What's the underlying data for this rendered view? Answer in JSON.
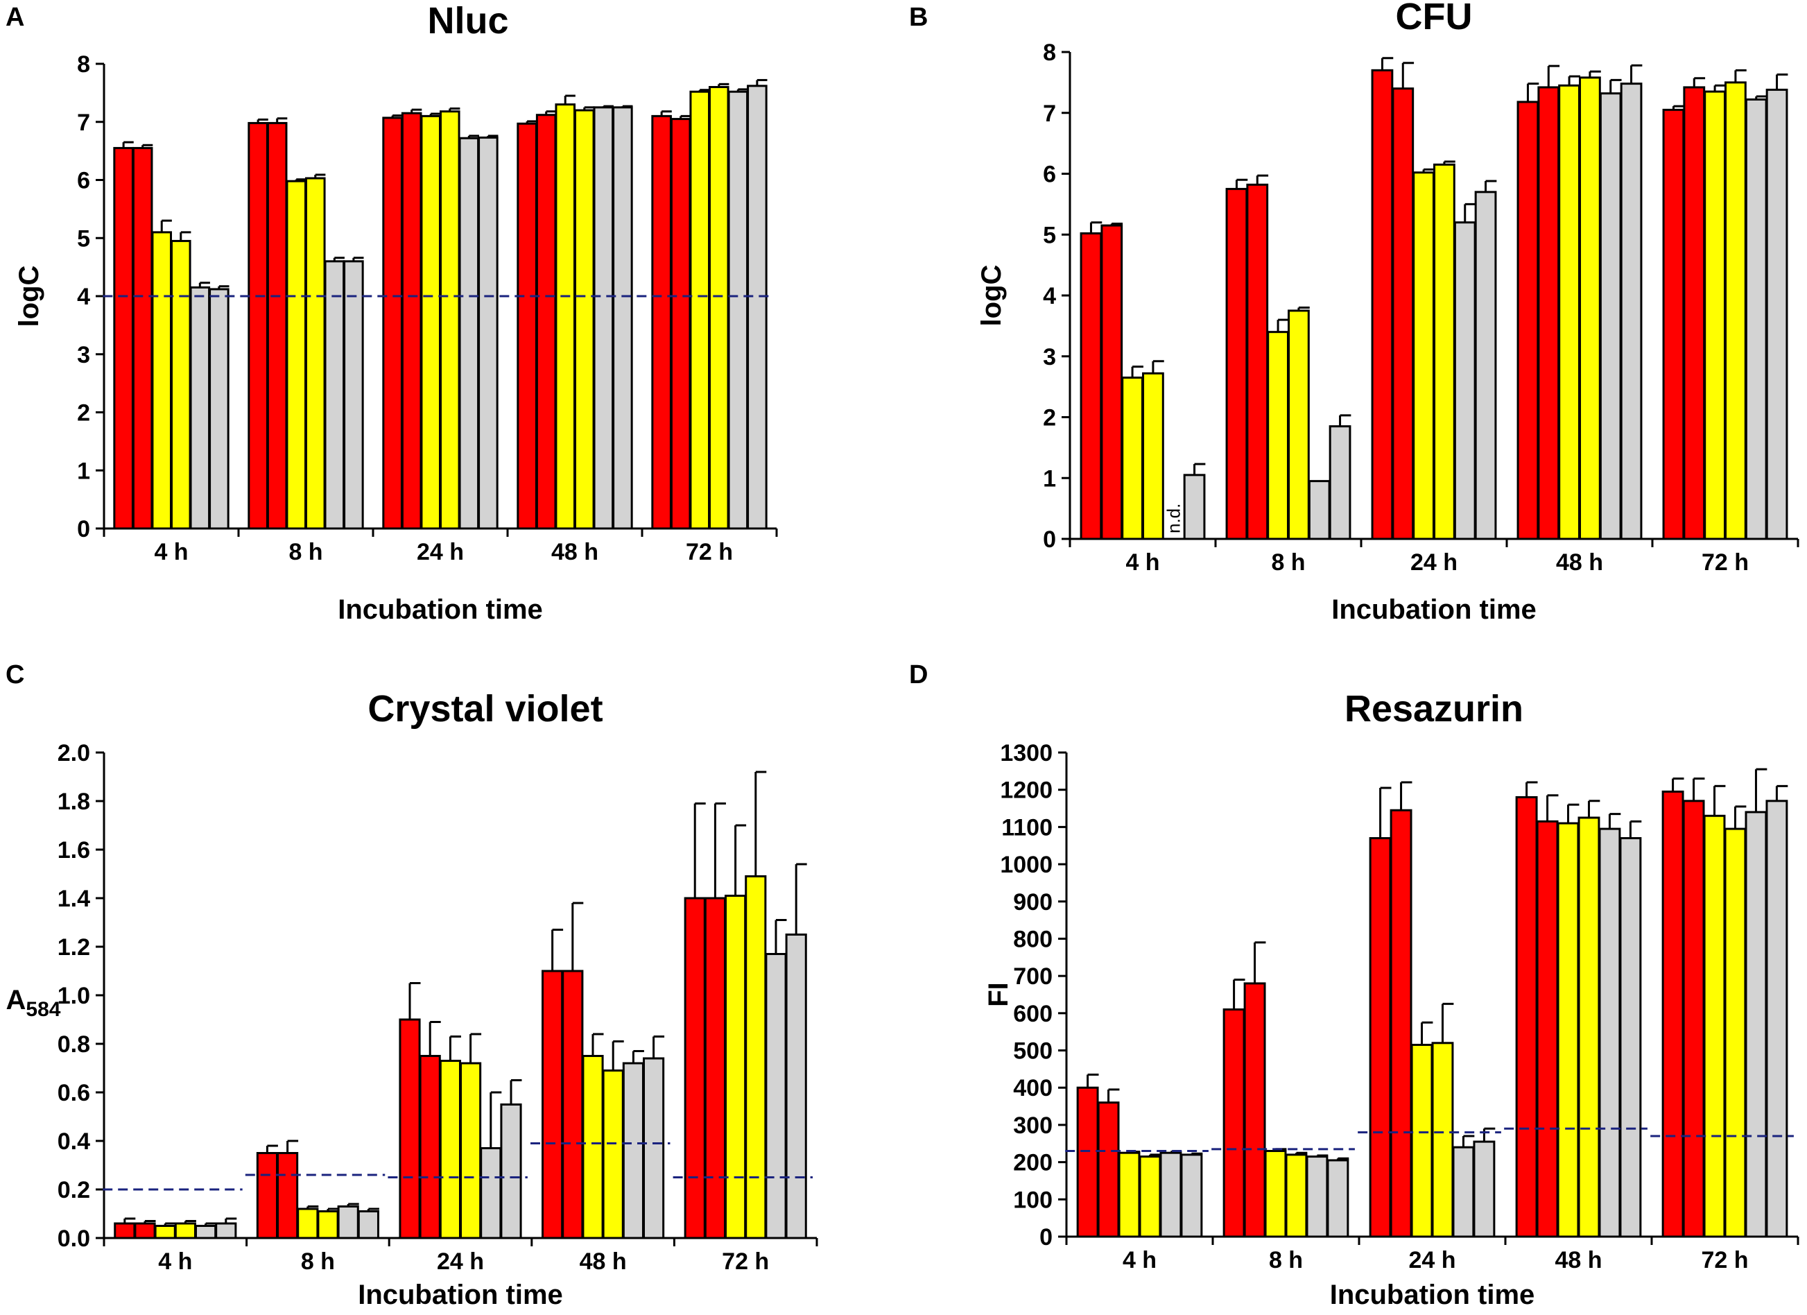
{
  "colors": {
    "red": "#ff0000",
    "yellow": "#ffff00",
    "gray": "#d3d3d3",
    "threshold": "#1a237e"
  },
  "chart_data": [
    {
      "panel": "A",
      "type": "bar",
      "title": "Nluc",
      "xlabel": "Incubation time",
      "ylabel": "logC",
      "ylabel_sub": "",
      "ylim": [
        0,
        8
      ],
      "yticks": [
        0,
        1,
        2,
        3,
        4,
        5,
        6,
        7,
        8
      ],
      "categories": [
        "4 h",
        "8 h",
        "24 h",
        "48 h",
        "72 h"
      ],
      "bar_colors": [
        "red",
        "red",
        "yellow",
        "yellow",
        "gray",
        "gray"
      ],
      "values": [
        [
          6.55,
          6.55,
          5.1,
          4.95,
          4.15,
          4.12
        ],
        [
          6.98,
          6.98,
          5.98,
          6.03,
          4.6,
          4.6
        ],
        [
          7.07,
          7.15,
          7.1,
          7.18,
          6.72,
          6.73
        ],
        [
          6.97,
          7.12,
          7.3,
          7.2,
          7.25,
          7.25
        ],
        [
          7.1,
          7.05,
          7.52,
          7.6,
          7.52,
          7.62
        ]
      ],
      "errors": [
        [
          0.1,
          0.05,
          0.2,
          0.15,
          0.08,
          0.05
        ],
        [
          0.06,
          0.08,
          0.03,
          0.06,
          0.06,
          0.06
        ],
        [
          0.04,
          0.06,
          0.04,
          0.05,
          0.04,
          0.03
        ],
        [
          0.04,
          0.06,
          0.15,
          0.05,
          0.02,
          0.02
        ],
        [
          0.08,
          0.05,
          0.03,
          0.05,
          0.04,
          0.1
        ]
      ],
      "labels": [
        [
          "",
          "",
          "",
          "",
          "",
          ""
        ],
        [
          "",
          "",
          "",
          "",
          "",
          ""
        ],
        [
          "",
          "",
          "",
          "",
          "",
          ""
        ],
        [
          "",
          "",
          "",
          "",
          "",
          ""
        ],
        [
          "",
          "",
          "",
          "",
          "",
          ""
        ]
      ],
      "thresholds": [
        {
          "value": 4.0,
          "category_start": 0,
          "category_end": 4
        }
      ]
    },
    {
      "panel": "B",
      "type": "bar",
      "title": "CFU",
      "xlabel": "Incubation time",
      "ylabel": "logC",
      "ylabel_sub": "",
      "ylim": [
        0,
        8
      ],
      "yticks": [
        0,
        1,
        2,
        3,
        4,
        5,
        6,
        7,
        8
      ],
      "categories": [
        "4 h",
        "8 h",
        "24 h",
        "48 h",
        "72 h"
      ],
      "bar_colors": [
        "red",
        "red",
        "yellow",
        "yellow",
        "gray",
        "gray"
      ],
      "values": [
        [
          5.02,
          5.15,
          2.65,
          2.72,
          null,
          1.05
        ],
        [
          5.75,
          5.82,
          3.4,
          3.75,
          0.95,
          1.85
        ],
        [
          7.7,
          7.4,
          6.02,
          6.15,
          5.2,
          5.7
        ],
        [
          7.18,
          7.42,
          7.45,
          7.58,
          7.32,
          7.48
        ],
        [
          7.05,
          7.42,
          7.35,
          7.5,
          7.22,
          7.38
        ]
      ],
      "errors": [
        [
          0.18,
          0.03,
          0.18,
          0.2,
          0,
          0.18
        ],
        [
          0.15,
          0.15,
          0.2,
          0.05,
          0,
          0.18
        ],
        [
          0.2,
          0.42,
          0.05,
          0.05,
          0.3,
          0.18
        ],
        [
          0.3,
          0.35,
          0.15,
          0.1,
          0.22,
          0.3
        ],
        [
          0.06,
          0.15,
          0.1,
          0.2,
          0.05,
          0.25
        ]
      ],
      "labels": [
        [
          "",
          "",
          "",
          "",
          "n.d.",
          ""
        ],
        [
          "",
          "",
          "",
          "",
          "",
          ""
        ],
        [
          "",
          "",
          "",
          "",
          "",
          ""
        ],
        [
          "",
          "",
          "",
          "",
          "",
          ""
        ],
        [
          "",
          "",
          "",
          "",
          "",
          ""
        ]
      ],
      "thresholds": []
    },
    {
      "panel": "C",
      "type": "bar",
      "title": "Crystal violet",
      "xlabel": "Incubation time",
      "ylabel": "A",
      "ylabel_sub": "584",
      "ylim": [
        0,
        2.0
      ],
      "yticks": [
        0.0,
        0.2,
        0.4,
        0.6,
        0.8,
        1.0,
        1.2,
        1.4,
        1.6,
        1.8,
        2.0
      ],
      "categories": [
        "4 h",
        "8 h",
        "24 h",
        "48 h",
        "72 h"
      ],
      "bar_colors": [
        "red",
        "red",
        "yellow",
        "yellow",
        "gray",
        "gray"
      ],
      "values": [
        [
          0.06,
          0.06,
          0.05,
          0.06,
          0.05,
          0.06
        ],
        [
          0.35,
          0.35,
          0.12,
          0.11,
          0.13,
          0.11
        ],
        [
          0.9,
          0.75,
          0.73,
          0.72,
          0.37,
          0.55
        ],
        [
          1.1,
          1.1,
          0.75,
          0.69,
          0.72,
          0.74
        ],
        [
          1.4,
          1.4,
          1.41,
          1.49,
          1.17,
          1.25
        ]
      ],
      "errors": [
        [
          0.02,
          0.01,
          0.01,
          0.01,
          0.01,
          0.02
        ],
        [
          0.03,
          0.05,
          0.01,
          0.01,
          0.01,
          0.01
        ],
        [
          0.15,
          0.14,
          0.1,
          0.12,
          0.23,
          0.1
        ],
        [
          0.17,
          0.28,
          0.09,
          0.12,
          0.05,
          0.09
        ],
        [
          0.39,
          0.39,
          0.29,
          0.43,
          0.14,
          0.29
        ]
      ],
      "labels": [
        [
          "",
          "",
          "",
          "",
          "",
          ""
        ],
        [
          "",
          "",
          "",
          "",
          "",
          ""
        ],
        [
          "",
          "",
          "",
          "",
          "",
          ""
        ],
        [
          "",
          "",
          "",
          "",
          "",
          ""
        ],
        [
          "",
          "",
          "",
          "",
          "",
          ""
        ]
      ],
      "thresholds": [
        {
          "value": 0.2,
          "category_start": 0,
          "category_end": 0
        },
        {
          "value": 0.26,
          "category_start": 1,
          "category_end": 1
        },
        {
          "value": 0.25,
          "category_start": 2,
          "category_end": 2
        },
        {
          "value": 0.39,
          "category_start": 3,
          "category_end": 3
        },
        {
          "value": 0.25,
          "category_start": 4,
          "category_end": 4
        }
      ]
    },
    {
      "panel": "D",
      "type": "bar",
      "title": "Resazurin",
      "xlabel": "Incubation time",
      "ylabel": "FI",
      "ylabel_sub": "",
      "ylim": [
        0,
        1300
      ],
      "yticks": [
        0,
        100,
        200,
        300,
        400,
        500,
        600,
        700,
        800,
        900,
        1000,
        1100,
        1200,
        1300
      ],
      "categories": [
        "4 h",
        "8 h",
        "24 h",
        "48 h",
        "72 h"
      ],
      "bar_colors": [
        "red",
        "red",
        "yellow",
        "yellow",
        "gray",
        "gray"
      ],
      "values": [
        [
          400,
          360,
          225,
          215,
          225,
          220
        ],
        [
          610,
          680,
          230,
          220,
          215,
          205
        ],
        [
          1070,
          1145,
          515,
          520,
          240,
          255
        ],
        [
          1180,
          1115,
          1110,
          1125,
          1095,
          1070
        ],
        [
          1195,
          1170,
          1130,
          1095,
          1140,
          1170
        ]
      ],
      "errors": [
        [
          35,
          35,
          3,
          5,
          3,
          3
        ],
        [
          80,
          110,
          5,
          5,
          3,
          5
        ],
        [
          135,
          75,
          60,
          105,
          30,
          35
        ],
        [
          40,
          70,
          50,
          45,
          40,
          45
        ],
        [
          35,
          60,
          80,
          60,
          115,
          40
        ]
      ],
      "labels": [
        [
          "",
          "",
          "",
          "",
          "",
          ""
        ],
        [
          "",
          "",
          "",
          "",
          "",
          ""
        ],
        [
          "",
          "",
          "",
          "",
          "",
          ""
        ],
        [
          "",
          "",
          "",
          "",
          "",
          ""
        ],
        [
          "",
          "",
          "",
          "",
          "",
          ""
        ]
      ],
      "thresholds": [
        {
          "value": 230,
          "category_start": 0,
          "category_end": 0
        },
        {
          "value": 235,
          "category_start": 1,
          "category_end": 1
        },
        {
          "value": 280,
          "category_start": 2,
          "category_end": 2
        },
        {
          "value": 290,
          "category_start": 3,
          "category_end": 3
        },
        {
          "value": 270,
          "category_start": 4,
          "category_end": 4
        }
      ]
    }
  ]
}
